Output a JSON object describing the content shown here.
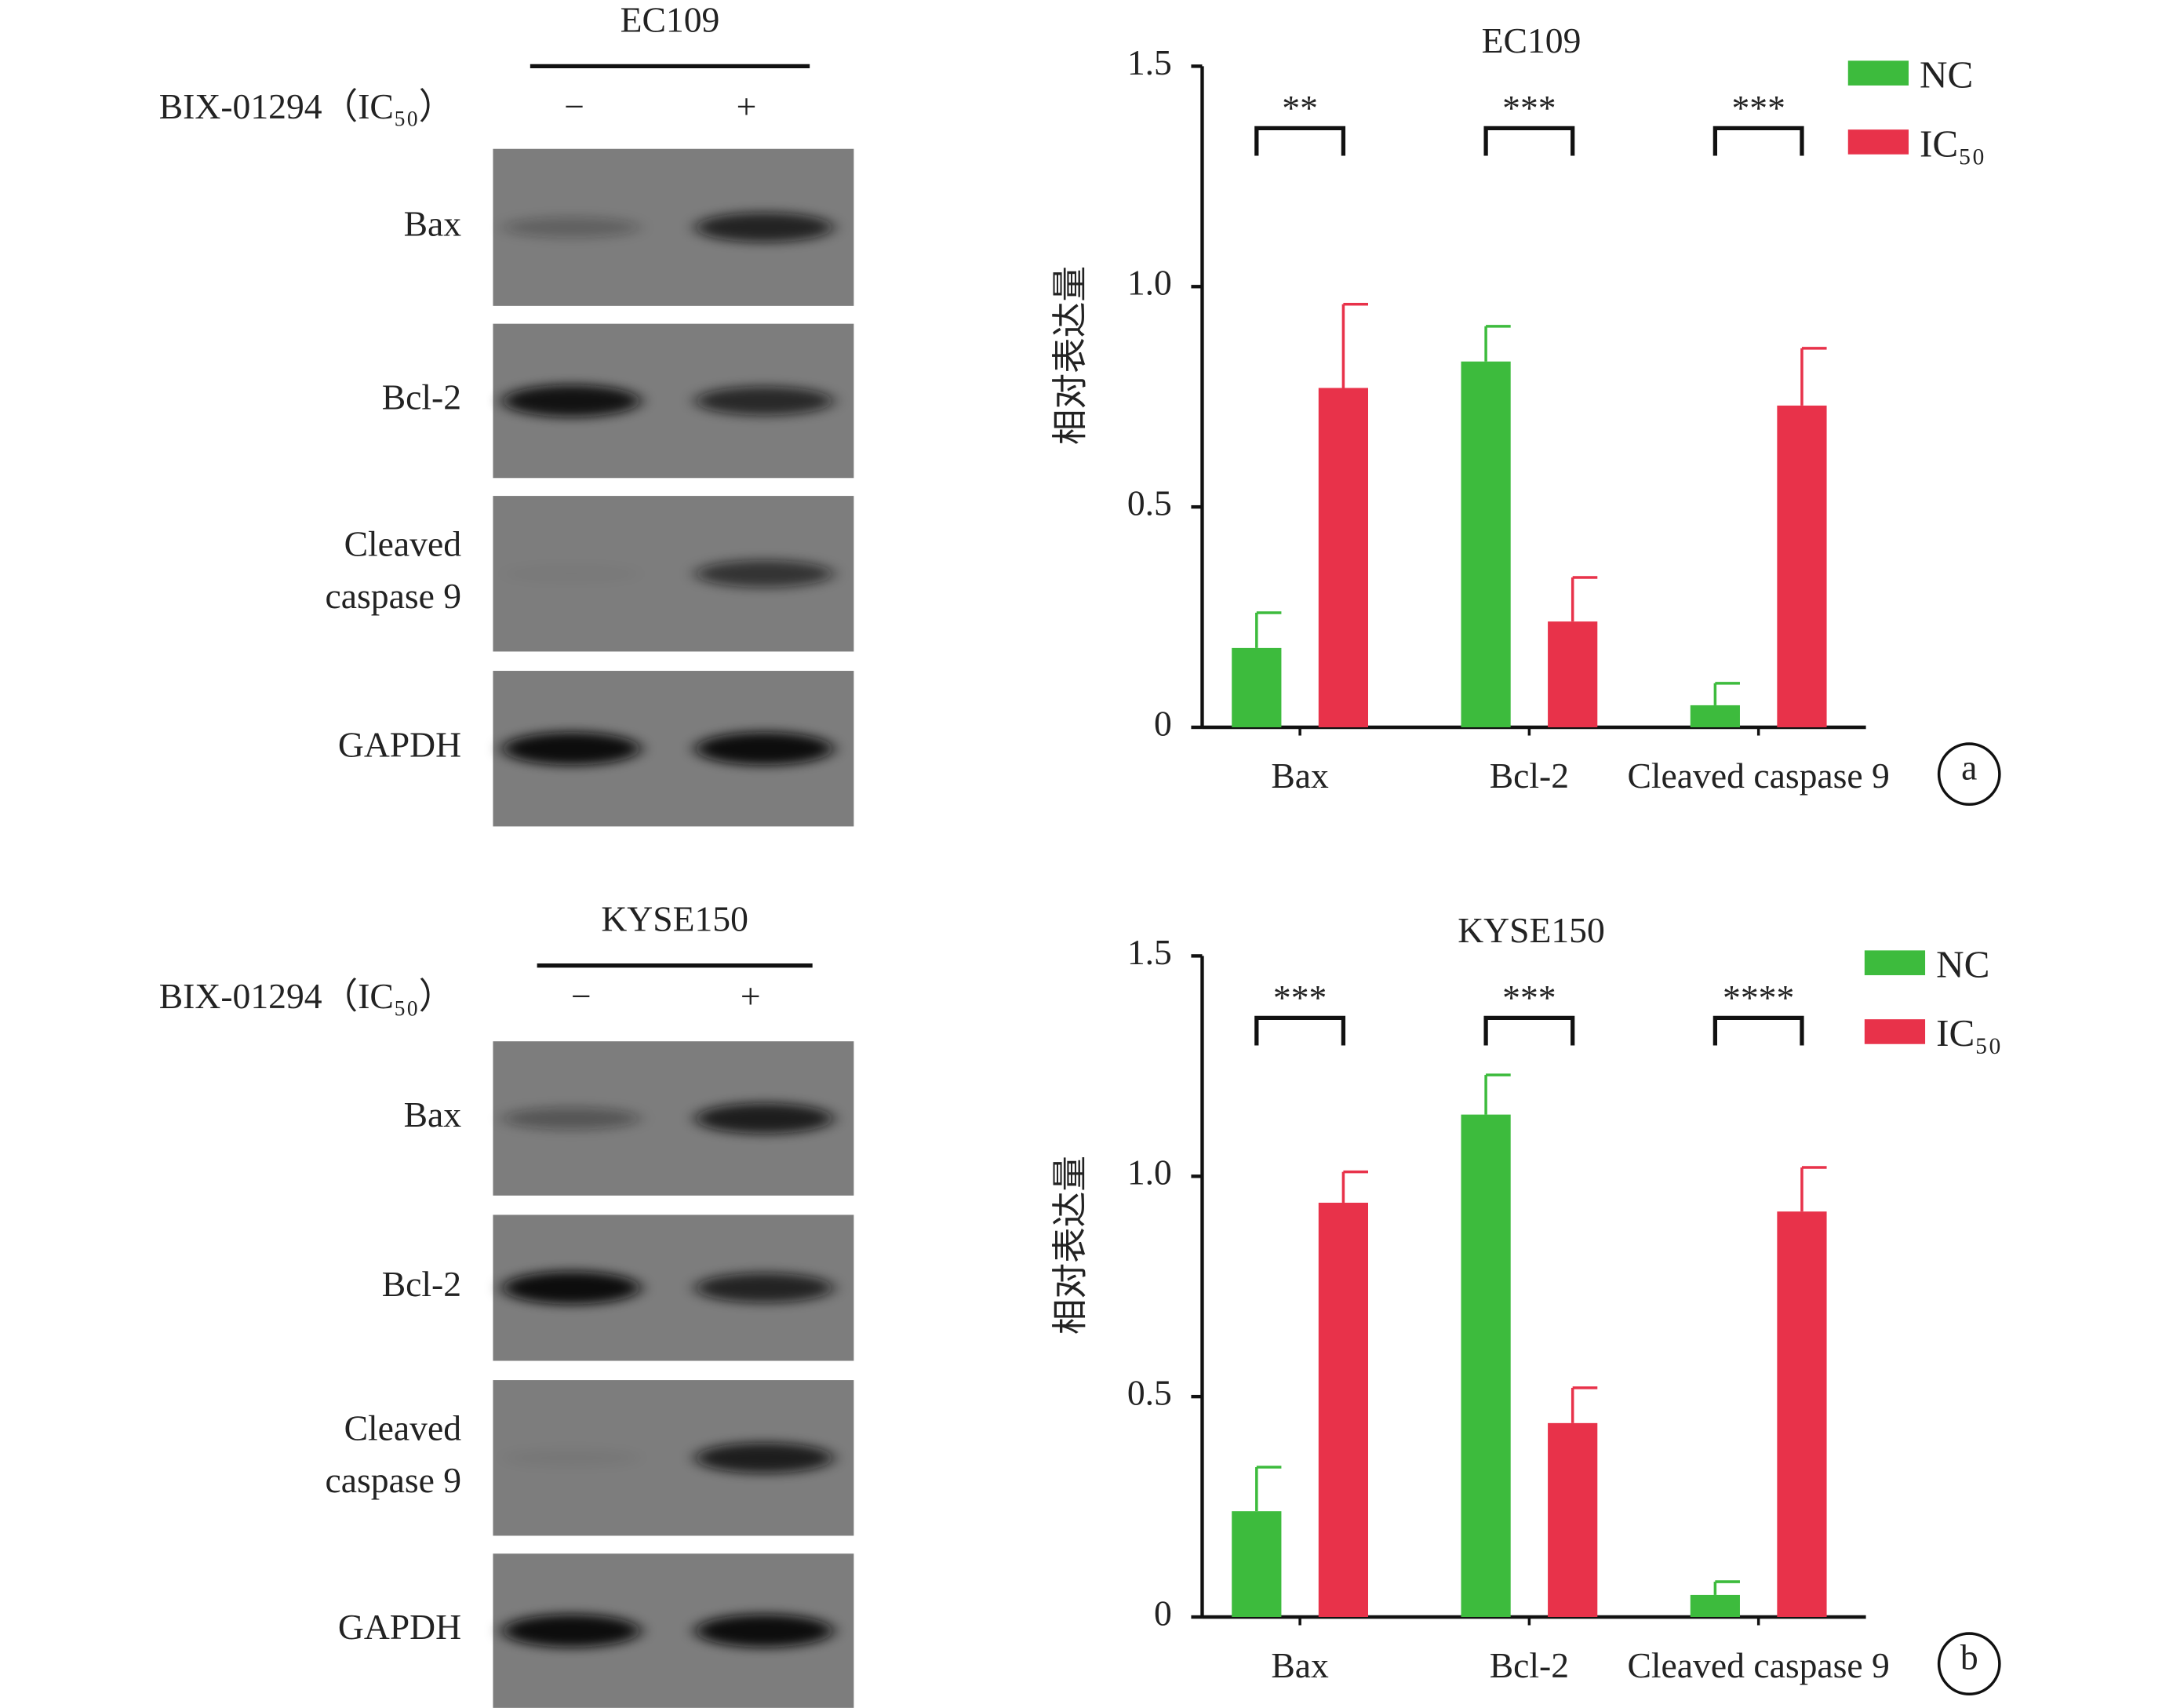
{
  "chart_data": [
    {
      "type": "bar",
      "title": "EC109",
      "ylabel": "相对表达量",
      "panel_label": "a",
      "categories": [
        "Bax",
        "Bcl-2",
        "Cleaved caspase 9"
      ],
      "series": [
        {
          "name": "NC",
          "color": "#3dbb3d",
          "values": [
            0.18,
            0.83,
            0.05
          ],
          "errors": [
            0.08,
            0.08,
            0.05
          ]
        },
        {
          "name": "IC₅₀",
          "color": "#e8324a",
          "values": [
            0.77,
            0.24,
            0.73
          ],
          "errors": [
            0.19,
            0.1,
            0.13
          ]
        }
      ],
      "annotations": [
        "**",
        "***",
        "***"
      ],
      "ylim": [
        0,
        1.5
      ],
      "yticks": [
        0,
        0.5,
        {
          "value": 1,
          "label": "1.0"
        },
        1.5
      ],
      "legend": "top-right"
    },
    {
      "type": "bar",
      "title": "KYSE150",
      "ylabel": "相对表达量",
      "panel_label": "b",
      "categories": [
        "Bax",
        "Bcl-2",
        "Cleaved caspase 9"
      ],
      "series": [
        {
          "name": "NC",
          "color": "#3dbb3d",
          "values": [
            0.24,
            1.14,
            0.05
          ],
          "errors": [
            0.1,
            0.09,
            0.03
          ]
        },
        {
          "name": "IC₅₀",
          "color": "#e8324a",
          "values": [
            0.94,
            0.44,
            0.92
          ],
          "errors": [
            0.07,
            0.08,
            0.1
          ]
        }
      ],
      "annotations": [
        "***",
        "***",
        "****"
      ],
      "ylim": [
        0,
        1.5
      ],
      "yticks": [
        0,
        0.5,
        {
          "value": 1,
          "label": "1.0"
        },
        1.5
      ],
      "legend": "top-right"
    }
  ],
  "blots": [
    {
      "title": "EC109",
      "treatment": "BIX-01294（IC₅₀）",
      "lanes": [
        "−",
        "+"
      ],
      "rows": [
        [
          "Bax"
        ],
        [
          "Bcl-2"
        ],
        [
          "Cleaved",
          "caspase 9"
        ],
        [
          "GAPDH"
        ]
      ]
    },
    {
      "title": "KYSE150",
      "treatment": "BIX-01294（IC₅₀）",
      "lanes": [
        "−",
        "+"
      ],
      "rows": [
        [
          "Bax"
        ],
        [
          "Bcl-2"
        ],
        [
          "Cleaved",
          "caspase 9"
        ],
        [
          "GAPDH"
        ]
      ]
    }
  ]
}
